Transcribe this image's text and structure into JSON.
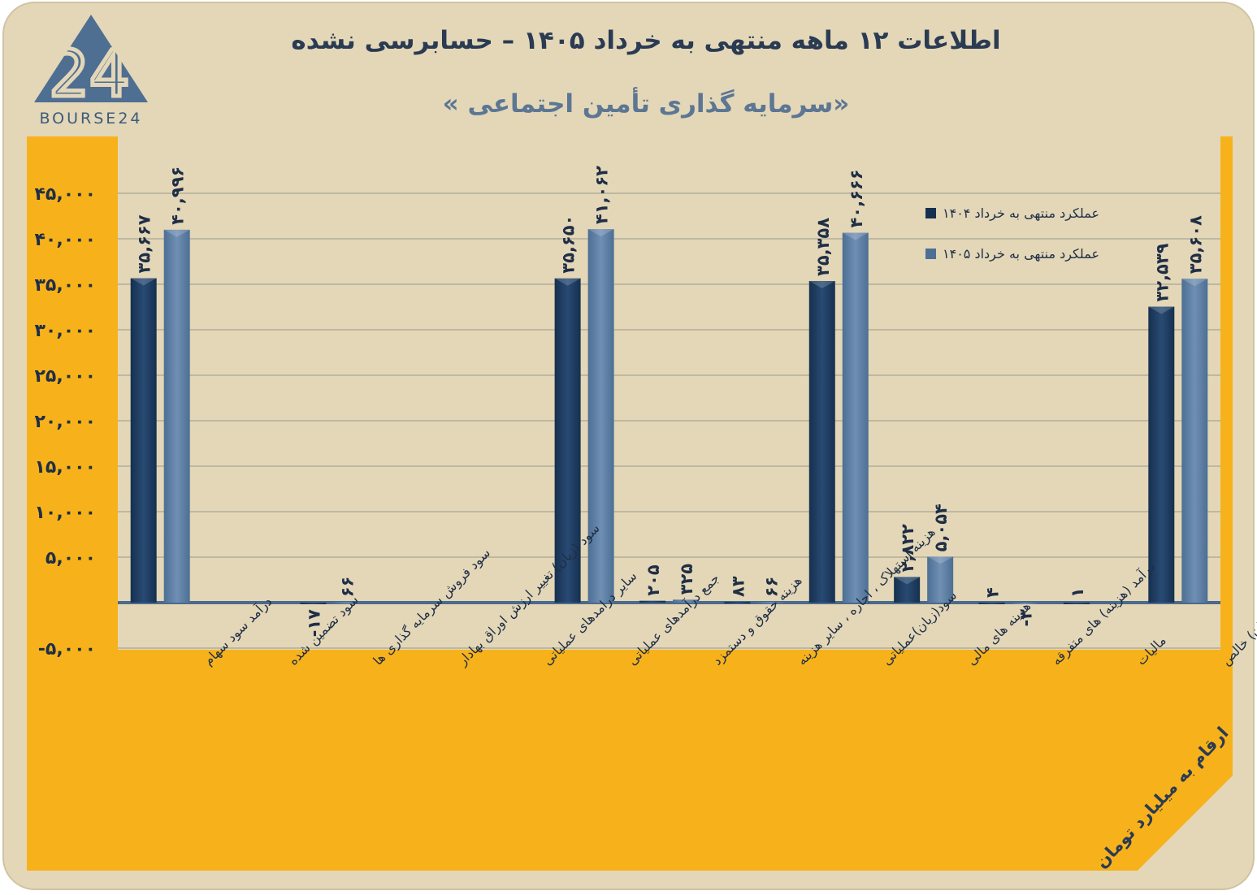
{
  "header": {
    "title": "اطلاعات ۱۲ ماهه منتهی به خرداد ۱۴۰۵ – حسابرسی نشده",
    "subtitle": "«سرمایه گذاری تأمین اجتماعی »",
    "logo_text": "BOURSE24",
    "logo_numeral": "24"
  },
  "unit_note": "ارقام به میلیارد تومان",
  "colors": {
    "series_1404": "#16304f",
    "series_1405": "#4d6f94",
    "panel": "#f7b21b",
    "plot": "#e3d7b8",
    "axis": "#4b6a8c"
  },
  "chart_data": {
    "type": "bar",
    "categories": [
      "درآمد سود سهام",
      "سود تضمین شده",
      "سود فروش سرمایه گذاری ها",
      "سود (زیان) تغییر ارزش اوراق بهادار",
      "سایر درامدهای عملیاتی",
      "جمع درآمدهای عملیاتی",
      "هزینه حقوق و دستمزد",
      "هزینه استهلاک ، اجاره ، سایر هزینه",
      "سود(زیان)عملیاتی",
      "هزینه های مالی",
      "درآمد (هزینه) های متفرقه",
      "مالیات",
      "سود(زیان) خالص"
    ],
    "series": [
      {
        "name": "عملکرد منتهی به  خرداد ۱۴۰۴",
        "values": [
          35667,
          null,
          -17,
          null,
          null,
          35650,
          205,
          83,
          35358,
          2822,
          4,
          1,
          32539
        ],
        "labels": [
          "۳۵,۶۶۷",
          "",
          "-۱۷",
          "",
          "",
          "۳۵,۶۵۰",
          "۲۰۵",
          "۸۳",
          "۳۵,۳۵۸",
          "۲,۸۲۲",
          "۴",
          "۱",
          "۳۲,۵۳۹"
        ]
      },
      {
        "name": "عملکرد منتهی به خرداد ۱۴۰۵",
        "values": [
          40996,
          null,
          66,
          null,
          null,
          41062,
          325,
          66,
          40666,
          5054,
          -3,
          null,
          35608
        ],
        "labels": [
          "۴۰,۹۹۶",
          "",
          "۶۶",
          "",
          "",
          "۴۱,۰۶۲",
          "۳۲۵",
          "۶۶",
          "۴۰,۶۶۶",
          "۵,۰۵۴",
          "-۳",
          "",
          "۳۵,۶۰۸"
        ]
      }
    ],
    "ylim": [
      -5000,
      50000
    ],
    "yticks": [
      -5000,
      5000,
      10000,
      15000,
      20000,
      25000,
      30000,
      35000,
      40000,
      45000
    ],
    "ytick_labels": [
      "-۵,۰۰۰",
      "۵,۰۰۰",
      "۱۰,۰۰۰",
      "۱۵,۰۰۰",
      "۲۰,۰۰۰",
      "۲۵,۰۰۰",
      "۳۰,۰۰۰",
      "۳۵,۰۰۰",
      "۴۰,۰۰۰",
      "۴۵,۰۰۰"
    ],
    "grid": true,
    "legend_position": "top-right"
  }
}
